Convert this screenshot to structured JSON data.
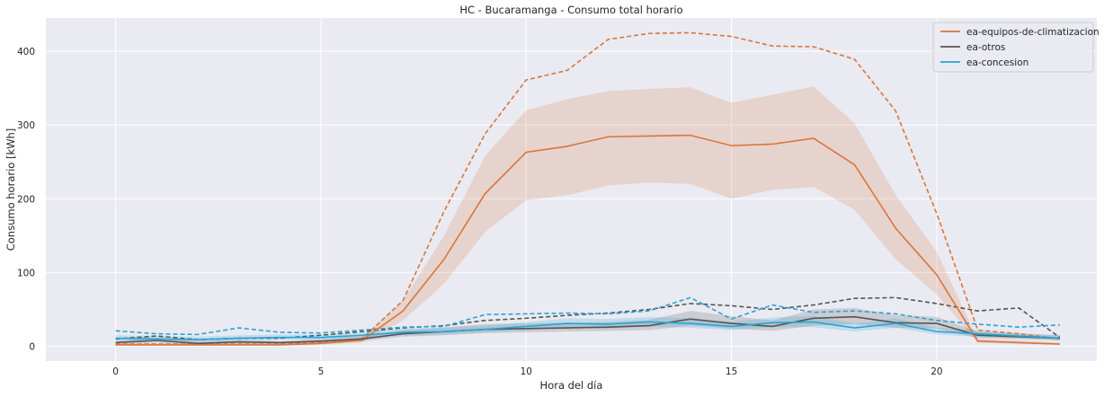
{
  "chart_data": {
    "type": "line",
    "title": "HC - Bucaramanga - Consumo total horario",
    "xlabel": "Hora del día",
    "ylabel": "Consumo horario [kWh]",
    "xlim": [
      -1.7,
      23.9
    ],
    "ylim": [
      -20,
      445
    ],
    "xticks": [
      0,
      5,
      10,
      15,
      20
    ],
    "yticks": [
      0,
      100,
      200,
      300,
      400
    ],
    "grid": true,
    "legend_position": "top-right",
    "x": [
      0,
      1,
      2,
      3,
      4,
      5,
      6,
      7,
      8,
      9,
      10,
      11,
      12,
      13,
      14,
      15,
      16,
      17,
      18,
      19,
      20,
      21,
      22,
      23
    ],
    "series": [
      {
        "name": "ea-equipos-de-climatizacion",
        "color": "#d9763a",
        "mean": [
          2,
          2,
          2,
          2,
          2,
          4,
          8,
          48,
          118,
          207,
          263,
          271,
          284,
          285,
          286,
          272,
          274,
          282,
          246,
          160,
          97,
          7,
          5,
          3
        ],
        "lower": [
          1,
          1,
          1,
          1,
          1,
          2,
          5,
          35,
          85,
          155,
          198,
          205,
          218,
          222,
          220,
          200,
          212,
          216,
          185,
          118,
          70,
          5,
          3,
          2
        ],
        "upper": [
          4,
          4,
          4,
          4,
          4,
          6,
          12,
          62,
          150,
          258,
          320,
          335,
          346,
          349,
          351,
          330,
          341,
          352,
          302,
          205,
          128,
          10,
          8,
          5
        ],
        "max": [
          3,
          3,
          3,
          3,
          3,
          6,
          10,
          62,
          183,
          288,
          361,
          374,
          416,
          424,
          425,
          420,
          407,
          406,
          389,
          319,
          180,
          22,
          17,
          10
        ]
      },
      {
        "name": "ea-otros",
        "color": "#555555",
        "mean": [
          5,
          8,
          4,
          6,
          5,
          7,
          10,
          17,
          20,
          23,
          24,
          25,
          26,
          28,
          37,
          31,
          27,
          38,
          40,
          32,
          31,
          15,
          13,
          11
        ],
        "lower": [
          3,
          5,
          2,
          4,
          3,
          5,
          7,
          13,
          15,
          18,
          19,
          20,
          21,
          22,
          28,
          24,
          21,
          28,
          30,
          25,
          24,
          11,
          10,
          8
        ],
        "upper": [
          8,
          11,
          7,
          9,
          7,
          10,
          14,
          22,
          26,
          30,
          31,
          32,
          33,
          36,
          48,
          41,
          35,
          50,
          52,
          42,
          40,
          20,
          17,
          15
        ],
        "max": [
          10,
          14,
          9,
          11,
          11,
          15,
          20,
          25,
          28,
          35,
          38,
          42,
          45,
          50,
          58,
          55,
          50,
          56,
          65,
          66,
          58,
          48,
          52,
          12
        ]
      },
      {
        "name": "ea-concesion",
        "color": "#29a3d6",
        "mean": [
          11,
          10,
          9,
          11,
          12,
          12,
          15,
          19,
          20,
          23,
          27,
          31,
          30,
          33,
          31,
          27,
          32,
          33,
          25,
          31,
          20,
          17,
          14,
          11
        ],
        "lower": [
          8,
          7,
          6,
          8,
          9,
          9,
          12,
          15,
          16,
          19,
          22,
          25,
          24,
          27,
          25,
          22,
          26,
          26,
          20,
          25,
          16,
          13,
          11,
          8
        ],
        "upper": [
          15,
          14,
          13,
          15,
          16,
          16,
          19,
          24,
          25,
          28,
          33,
          38,
          37,
          40,
          38,
          33,
          39,
          41,
          31,
          38,
          25,
          22,
          18,
          15
        ],
        "max": [
          21,
          17,
          16,
          25,
          19,
          18,
          22,
          26,
          27,
          43,
          44,
          45,
          44,
          48,
          66,
          37,
          56,
          46,
          48,
          44,
          35,
          30,
          26,
          29
        ]
      }
    ]
  }
}
